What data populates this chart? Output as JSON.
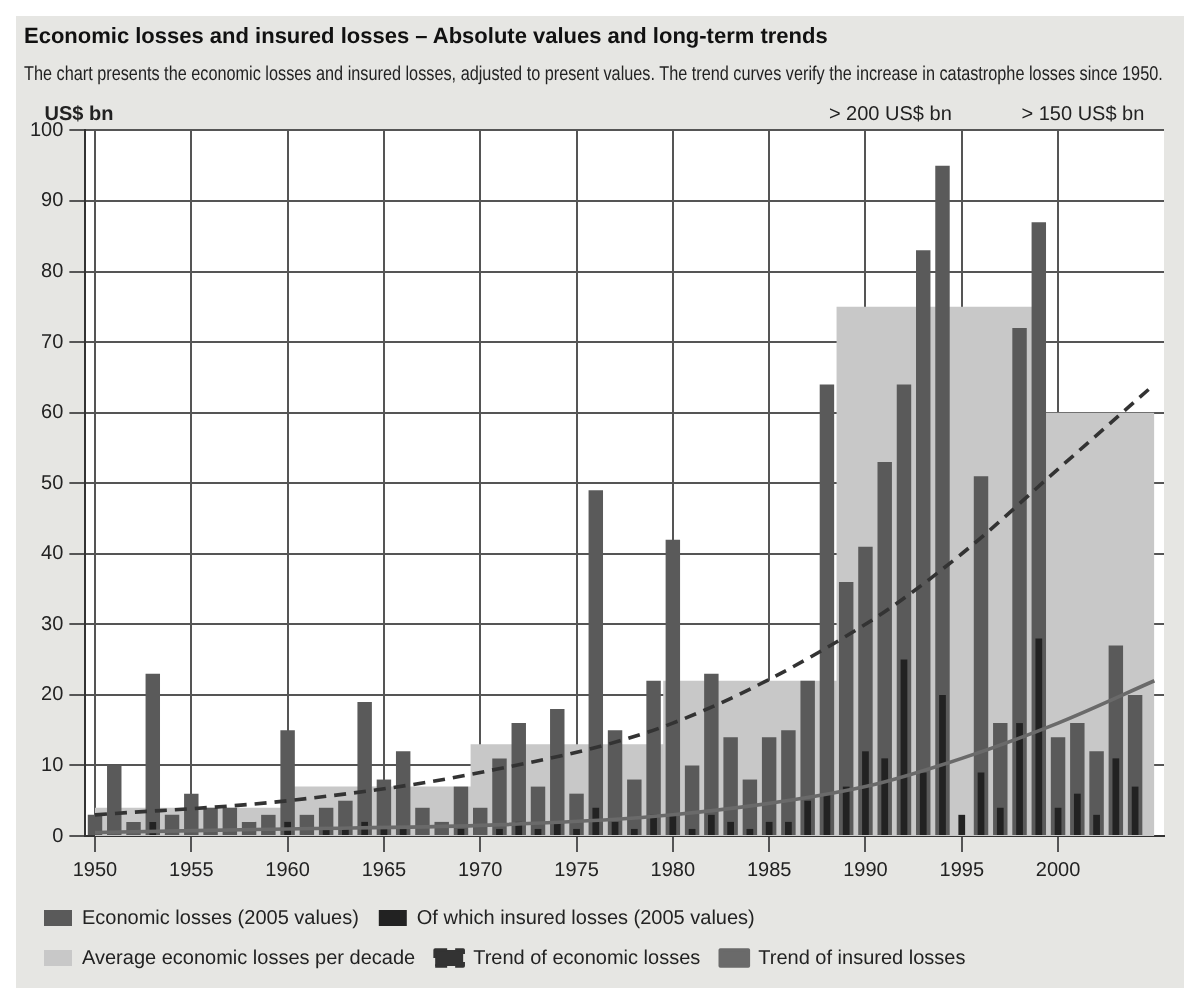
{
  "chart_data": {
    "type": "bar",
    "title": "Economic losses and insured losses – Absolute values and long-term trends",
    "subtitle": "The chart presents the economic losses and insured losses, adjusted to present values. The trend curves verify the increase in catastrophe losses since 1950.",
    "ylabel": "US$ bn",
    "categories": [
      "1950",
      null,
      null,
      null,
      null,
      "1955",
      null,
      null,
      null,
      null,
      "1960",
      null,
      null,
      null,
      null,
      "1965",
      null,
      null,
      null,
      null,
      "1970",
      null,
      null,
      null,
      null,
      "1975",
      null,
      null,
      null,
      null,
      "1980",
      null,
      null,
      null,
      null,
      "1985",
      null,
      null,
      null,
      null,
      "1990",
      null,
      null,
      null,
      null,
      "1995",
      null,
      null,
      null,
      null,
      "2000",
      null,
      null,
      null,
      null,
      null
    ],
    "series": [
      {
        "name": "Economic losses (2005 values)",
        "color": "#5a5a5a",
        "values": [
          3,
          10,
          2,
          23,
          3,
          6,
          4,
          4,
          2,
          3,
          15,
          3,
          4,
          5,
          19,
          8,
          12,
          4,
          2,
          7,
          4,
          11,
          16,
          7,
          18,
          6,
          49,
          15,
          8,
          22,
          42,
          10,
          23,
          14,
          8,
          14,
          15,
          22,
          64,
          36,
          41,
          53,
          64,
          83,
          95,
          null,
          51,
          16,
          72,
          87,
          14,
          16,
          12,
          27,
          20,
          null
        ]
      },
      {
        "name": "Of which insured losses (2005 values)",
        "color": "#222222",
        "values": [
          0,
          null,
          0,
          2,
          0,
          null,
          0,
          0,
          0,
          0,
          2,
          0,
          1,
          1,
          2,
          1,
          1,
          0,
          0,
          1,
          0,
          1,
          2,
          1,
          2,
          1,
          4,
          2,
          1,
          3,
          3,
          1,
          3,
          2,
          1,
          2,
          2,
          5,
          6,
          7,
          12,
          11,
          25,
          9,
          20,
          3,
          9,
          4,
          16,
          28,
          4,
          6,
          3,
          11,
          7,
          null
        ]
      },
      {
        "name": "Average economic losses per decade",
        "type": "area",
        "color": "#c8c8c8",
        "values": [
          4,
          null,
          4,
          null,
          4,
          null,
          4,
          4,
          4,
          4,
          null,
          7,
          7,
          7,
          null,
          null,
          null,
          7,
          7,
          7,
          13,
          13,
          null,
          13,
          null,
          13,
          null,
          null,
          13,
          null,
          null,
          22,
          null,
          22,
          22,
          22,
          22,
          22,
          null,
          null,
          75,
          75,
          75,
          null,
          null,
          75,
          75,
          75,
          75,
          null,
          60,
          60,
          60,
          60,
          60,
          60
        ]
      },
      {
        "name": "Trend of economic losses",
        "type": "line",
        "color": "#333333",
        "line_style": "dashed",
        "values": [
          3,
          null,
          null,
          null,
          null,
          null,
          null,
          null,
          null,
          null,
          5,
          null,
          null,
          null,
          null,
          null,
          null,
          null,
          null,
          null,
          9,
          null,
          null,
          null,
          null,
          null,
          null,
          null,
          null,
          null,
          16,
          null,
          null,
          null,
          null,
          null,
          null,
          null,
          null,
          null,
          30,
          null,
          null,
          null,
          null,
          40,
          null,
          null,
          null,
          null,
          52,
          null,
          null,
          null,
          null,
          64
        ]
      },
      {
        "name": "Trend of insured losses",
        "type": "line",
        "color": "#6a6a6a",
        "line_style": "solid",
        "values": [
          0.5,
          null,
          null,
          null,
          null,
          null,
          null,
          null,
          null,
          null,
          1,
          null,
          null,
          null,
          null,
          null,
          null,
          null,
          null,
          null,
          1.5,
          null,
          null,
          null,
          null,
          null,
          null,
          null,
          null,
          null,
          3,
          null,
          null,
          null,
          null,
          null,
          null,
          null,
          null,
          null,
          7,
          null,
          null,
          null,
          null,
          11,
          null,
          null,
          null,
          null,
          16,
          null,
          null,
          null,
          null,
          22
        ]
      }
    ],
    "annotations": [
      "> 200 US$ bn",
      "> 150 US$ bn"
    ],
    "ylim": [
      0,
      100
    ],
    "yticks": [
      0,
      10,
      20,
      30,
      40,
      50,
      60,
      70,
      80,
      90,
      100
    ],
    "grid": true,
    "legend": "bottom",
    "marker": "none"
  }
}
